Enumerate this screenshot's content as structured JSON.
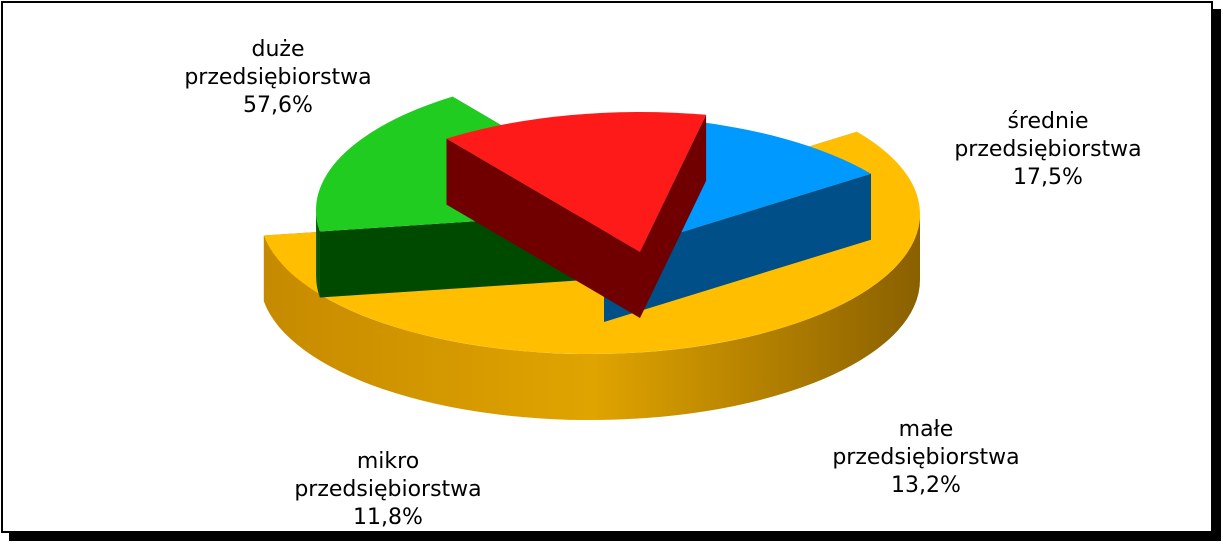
{
  "chart_data": {
    "type": "pie",
    "style": "3d-exploded",
    "slices": [
      {
        "name": "duże przedsiębiorstwa",
        "label_lines": [
          "duże",
          "przedsiębiorstwa",
          "57,6%"
        ],
        "value": 57.6,
        "color": "#FFBF00"
      },
      {
        "name": "średnie przedsiębiorstwa",
        "label_lines": [
          "średnie",
          "przedsiębiorstwa",
          "17,5%"
        ],
        "value": 17.5,
        "color": "#1FCC1F"
      },
      {
        "name": "małe przedsiębiorstwa",
        "label_lines": [
          "małe",
          "przedsiębiorstwa",
          "13,2%"
        ],
        "value": 13.2,
        "color": "#FF1A1A"
      },
      {
        "name": "mikro przedsiębiorstwa",
        "label_lines": [
          "mikro",
          "przedsiębiorstwa",
          "11,8%"
        ],
        "value": 11.8,
        "color": "#0099FF"
      }
    ]
  }
}
